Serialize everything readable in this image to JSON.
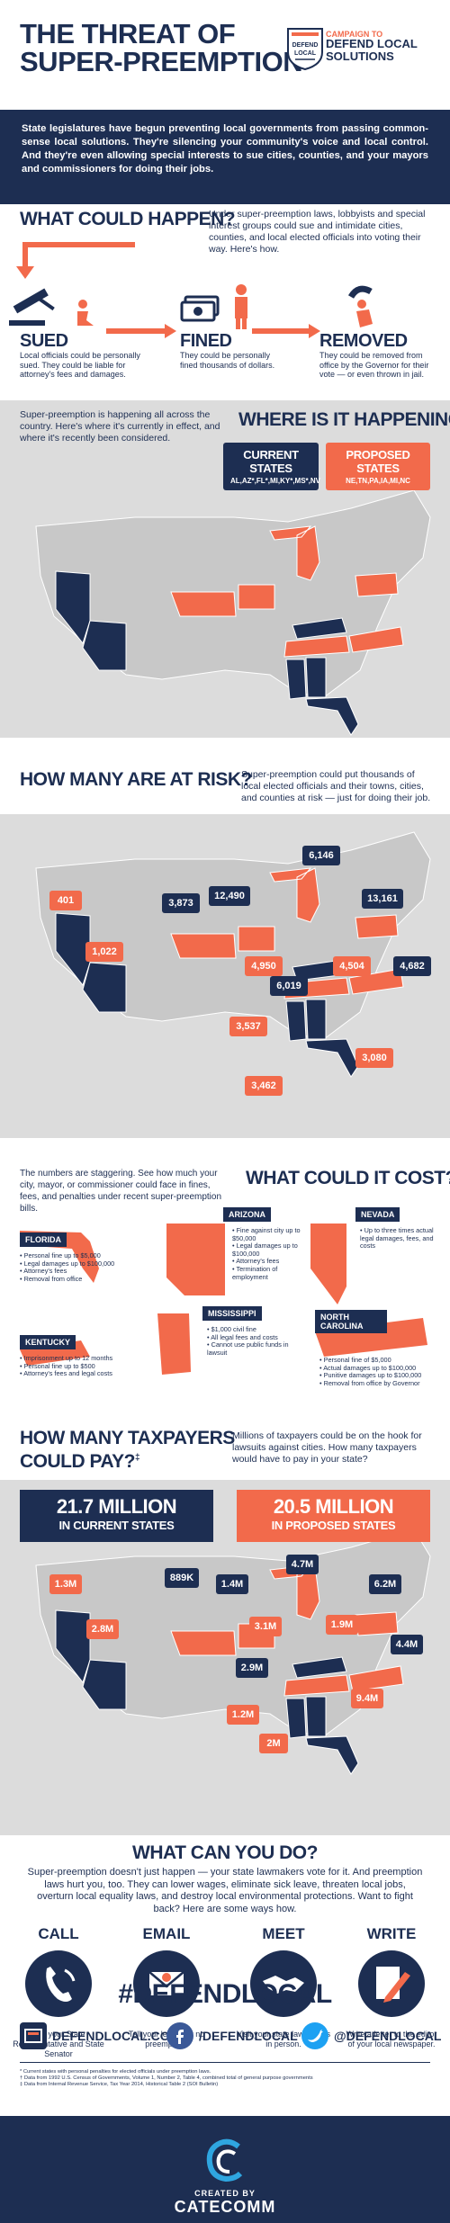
{
  "header": {
    "title_line1": "THE THREAT OF",
    "title_line2": "SUPER-PREEMPTION",
    "logo_small": "CAMPAIGN TO",
    "logo_big": "DEFEND LOCAL SOLUTIONS",
    "logo_shield_top": "DEFEND",
    "logo_shield_bottom": "LOCAL"
  },
  "intro": "State legislatures have begun preventing local governments from passing common-sense local solutions. They're silencing your community's voice and local control. And they're even allowing special interests to sue cities, counties, and your mayors and commissioners for doing their jobs.",
  "what_could_happen": {
    "title": "WHAT COULD HAPPEN?",
    "text": "Under super-preemption laws, lobbyists and special interest groups could sue and intimidate cities, counties, and local elected officials into voting their way. Here's how.",
    "steps": [
      {
        "title": "SUED",
        "text": "Local officials could be personally sued. They could be liable for attorney's fees and damages."
      },
      {
        "title": "FINED",
        "text": "They could be personally fined thousands of dollars."
      },
      {
        "title": "REMOVED",
        "text": "They could be removed from office by the Governor for their vote — or even thrown in jail."
      }
    ]
  },
  "where": {
    "title": "WHERE IS IT HAPPENING?",
    "text": "Super-preemption is happening all across the country. Here's where it's currently in effect, and where it's recently been considered.",
    "current_label": "CURRENT STATES",
    "current_states": "AL,AZ*,FL*,MI,KY*,MS*,NV",
    "proposed_label": "PROPOSED STATES",
    "proposed_states": "NE,TN,PA,IA,MI,NC"
  },
  "at_risk": {
    "title": "HOW MANY ARE AT RISK?",
    "text": "Super-preemption could put thousands of local elected officials and their towns, cities, and counties at risk — just for doing their job.",
    "navy_labels": [
      "6,146",
      "3,873",
      "12,490",
      "13,161",
      "4,682",
      "6,019"
    ],
    "orange_labels": [
      "401",
      "1,022",
      "4,950",
      "4,504",
      "3,537",
      "3,462",
      "3,080"
    ]
  },
  "cost": {
    "title": "WHAT COULD IT COST?",
    "text": "The numbers are staggering. See how much your city, mayor, or commissioner could face in fines, fees, and penalties under recent super-preemption bills.",
    "states": [
      {
        "name": "FLORIDA",
        "items": [
          "Personal fine up to $5,000",
          "Legal damages up to $100,000",
          "Attorney's fees",
          "Removal from office"
        ]
      },
      {
        "name": "ARIZONA",
        "items": [
          "Fine against city up to $50,000",
          "Legal damages up to $100,000",
          "Attorney's fees",
          "Termination of employment"
        ]
      },
      {
        "name": "NEVADA",
        "items": [
          "Up to three times actual legal damages, fees, and costs"
        ]
      },
      {
        "name": "KENTUCKY",
        "items": [
          "Imprisonment up to 12 months",
          "Personal fine up to $500",
          "Attorney's fees and legal costs"
        ]
      },
      {
        "name": "MISSISSIPPI",
        "items": [
          "$1,000 civil fine",
          "All legal fees and costs",
          "Cannot use public funds in lawsuit"
        ]
      },
      {
        "name": "NORTH CAROLINA",
        "items": [
          "Personal fine of $5,000",
          "Actual damages up to $100,000",
          "Punitive damages up to $100,000",
          "Removal from office by Governor"
        ]
      }
    ]
  },
  "taxpayers": {
    "title_line1": "HOW MANY TAXPAYERS",
    "title_line2": "COULD PAY?",
    "title_mark": "‡",
    "text": "Millions of taxpayers could be on the hook for lawsuits against cities. How many taxpayers would have to pay in your state?",
    "current_big": "21.7 MILLION",
    "current_small": "IN CURRENT STATES",
    "proposed_big": "20.5 MILLION",
    "proposed_small": "IN PROPOSED STATES",
    "navy_labels": [
      "889K",
      "1.4M",
      "4.7M",
      "6.2M",
      "4.4M",
      "2.9M"
    ],
    "orange_labels": [
      "1.3M",
      "2.8M",
      "3.1M",
      "1.9M",
      "1.2M",
      "9.4M",
      "2M"
    ]
  },
  "what_can_you_do": {
    "title": "WHAT CAN YOU DO?",
    "text": "Super-preemption doesn't just happen — your state lawmakers vote for it. And preemption laws hurt you, too. They can lower wages, eliminate sick leave, threaten local jobs, overturn local equality laws, and destroy local environmental protections. Want to fight back? Here are some ways how.",
    "actions": [
      {
        "title": "CALL",
        "text": "Call your State Representative and State Senator"
      },
      {
        "title": "EMAIL",
        "text": "Tell your legislator no preemption."
      },
      {
        "title": "MEET",
        "text": "Visit your state lawmakers in person."
      },
      {
        "title": "WRITE",
        "text": "Write a letter to the editor of your local newspaper."
      }
    ]
  },
  "hashtag": "#DEFENDLOCAL",
  "social": {
    "web": "DEFENDLOCAL.COM",
    "facebook": "/DEFENDLOCAL",
    "twitter": "@DEFENDLOCAL"
  },
  "footnotes": [
    "* Current states with personal penalties for elected officials under preemption laws.",
    "† Data from 1992 U.S. Census of Governments, Volume 1, Number 2, Table 4, combined total of general purpose governments",
    "‡ Data from Internal Revenue Service, Tax Year 2014, Historical Table 2 (SOI Bulletin)"
  ],
  "footer": {
    "created_by": "CREATED BY",
    "company": "CATECOMM"
  },
  "colors": {
    "navy": "#1d2e52",
    "orange": "#f26a4b",
    "map_gray": "#c8c8c8",
    "bg_gray": "#dcdcdc"
  }
}
